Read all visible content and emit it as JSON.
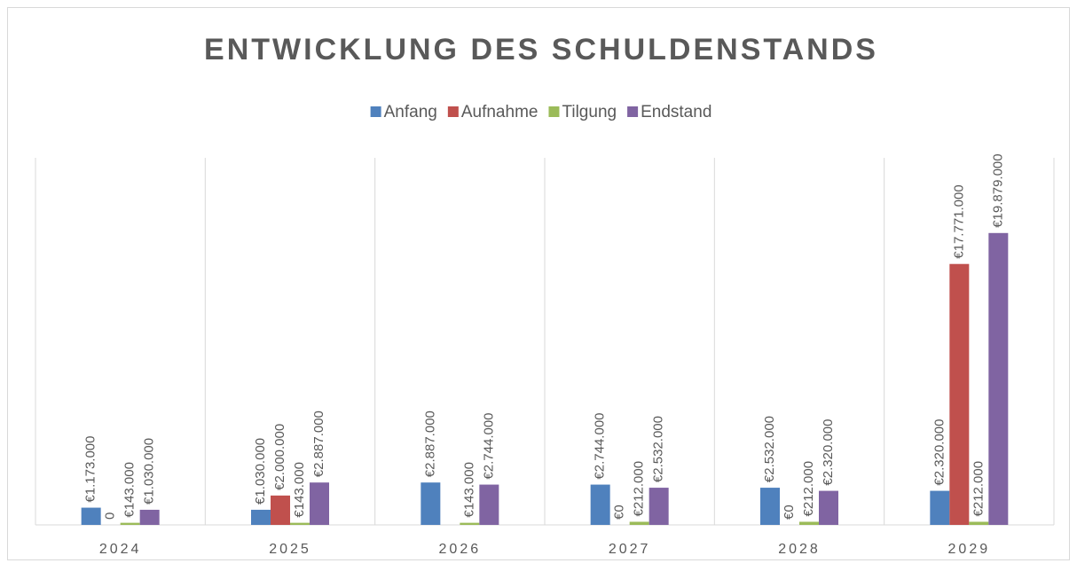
{
  "chart_data": {
    "type": "bar",
    "title": "ENTWICKLUNG DES SCHULDENSTANDS",
    "categories": [
      "2024",
      "2025",
      "2026",
      "2027",
      "2028",
      "2029"
    ],
    "series": [
      {
        "name": "Anfang",
        "color": "#4f81bd",
        "values": [
          1173000,
          1030000,
          2887000,
          2744000,
          2532000,
          2320000
        ],
        "value_labels": [
          "€1.173.000",
          "€1.030.000",
          "€2.887.000",
          "€2.744.000",
          "€2.532.000",
          "€2.320.000"
        ]
      },
      {
        "name": "Aufnahme",
        "color": "#c0504d",
        "values": [
          0,
          2000000,
          null,
          0,
          0,
          17771000
        ],
        "value_labels": [
          "0",
          "€2.000.000",
          null,
          "€0",
          "€0",
          "€17.771.000"
        ]
      },
      {
        "name": "Tilgung",
        "color": "#9bbb59",
        "values": [
          143000,
          143000,
          143000,
          212000,
          212000,
          212000
        ],
        "value_labels": [
          "€143.000",
          "€143.000",
          "€143.000",
          "€212.000",
          "€212.000",
          "€212.000"
        ]
      },
      {
        "name": "Endstand",
        "color": "#8064a2",
        "values": [
          1030000,
          2887000,
          2744000,
          2532000,
          2320000,
          19879000
        ],
        "value_labels": [
          "€1.030.000",
          "€2.887.000",
          "€2.744.000",
          "€2.532.000",
          "€2.320.000",
          "€19.879.000"
        ]
      }
    ],
    "ylim": [
      0,
      25000000
    ],
    "legend": "top"
  }
}
